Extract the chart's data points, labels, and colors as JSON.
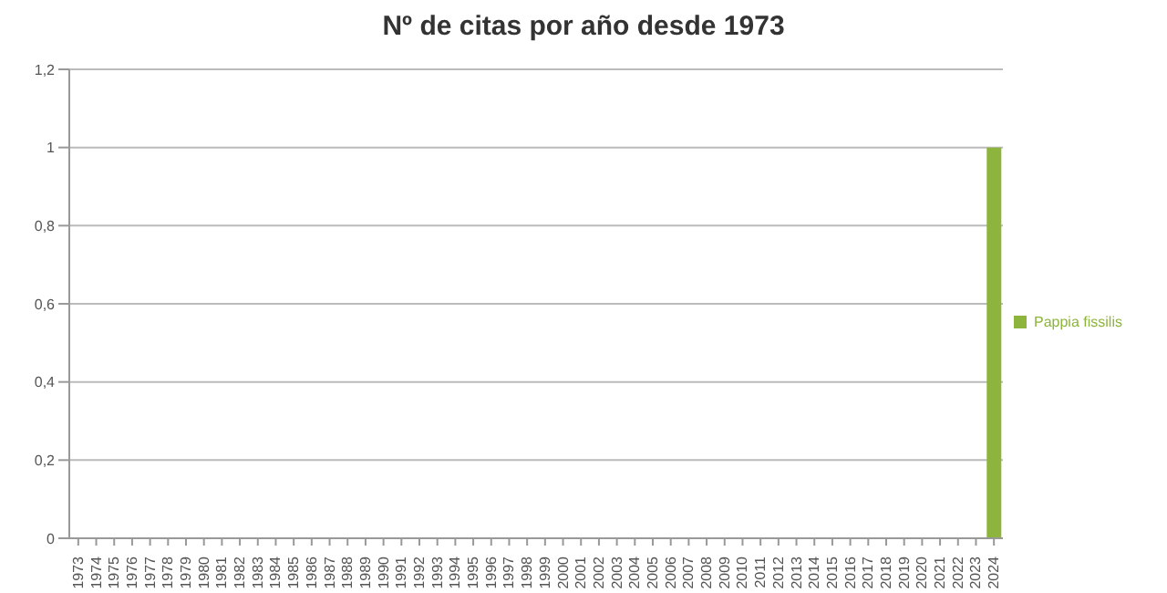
{
  "chart_data": {
    "type": "bar",
    "title": "Nº de citas por año desde 1973",
    "categories": [
      "1973",
      "1974",
      "1975",
      "1976",
      "1977",
      "1978",
      "1979",
      "1980",
      "1981",
      "1982",
      "1983",
      "1984",
      "1985",
      "1986",
      "1987",
      "1988",
      "1989",
      "1990",
      "1991",
      "1992",
      "1993",
      "1994",
      "1995",
      "1996",
      "1997",
      "1998",
      "1999",
      "2000",
      "2001",
      "2002",
      "2003",
      "2004",
      "2005",
      "2006",
      "2007",
      "2008",
      "2009",
      "2010",
      "2011",
      "2012",
      "2013",
      "2014",
      "2015",
      "2016",
      "2017",
      "2018",
      "2019",
      "2020",
      "2021",
      "2022",
      "2023",
      "2024"
    ],
    "series": [
      {
        "name": "Pappia fissilis",
        "color": "#8db43c",
        "values": [
          0,
          0,
          0,
          0,
          0,
          0,
          0,
          0,
          0,
          0,
          0,
          0,
          0,
          0,
          0,
          0,
          0,
          0,
          0,
          0,
          0,
          0,
          0,
          0,
          0,
          0,
          0,
          0,
          0,
          0,
          0,
          0,
          0,
          0,
          0,
          0,
          0,
          0,
          0,
          0,
          0,
          0,
          0,
          0,
          0,
          0,
          0,
          0,
          0,
          0,
          0,
          1
        ]
      }
    ],
    "ylim": [
      0,
      1.2
    ],
    "yticks": [
      0,
      {
        "value": 0.2,
        "label": "0,2"
      },
      {
        "value": 0.4,
        "label": "0,4"
      },
      {
        "value": 0.6,
        "label": "0,6"
      },
      {
        "value": 0.8,
        "label": "0,8"
      },
      1,
      {
        "value": 1.2,
        "label": "1,2"
      }
    ],
    "grid": "y",
    "legend": "right"
  }
}
